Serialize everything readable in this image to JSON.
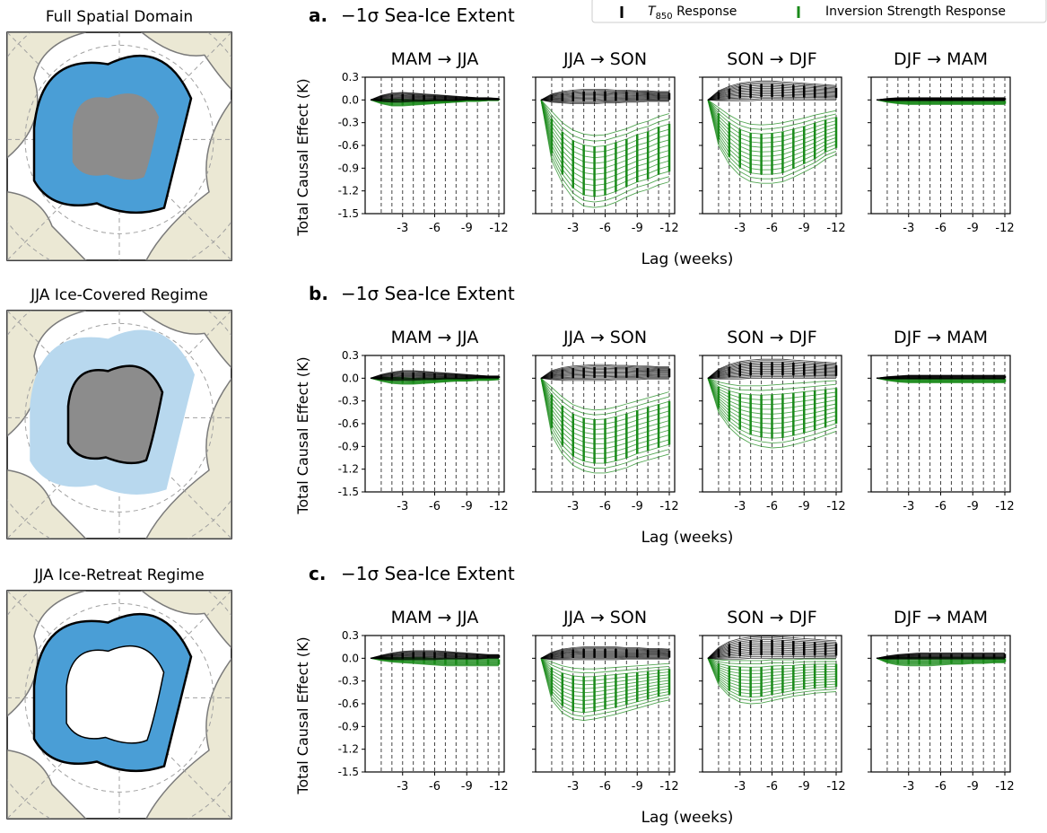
{
  "legend": {
    "items": [
      {
        "label_main": "T",
        "label_sub": "850",
        "label_rest": " Response",
        "color": "#000000"
      },
      {
        "label": "Inversion Strength Response",
        "color": "#1a8a1a"
      }
    ]
  },
  "rows": [
    {
      "map_title": "Full Spatial Domain",
      "map_style": "full",
      "letter": "a.",
      "row_title": "−1σ Sea-Ice Extent"
    },
    {
      "map_title": "JJA Ice-Covered Regime",
      "map_style": "covered",
      "letter": "b.",
      "row_title": "−1σ Sea-Ice Extent"
    },
    {
      "map_title": "JJA Ice-Retreat Regime",
      "map_style": "retreat",
      "letter": "c.",
      "row_title": "−1σ Sea-Ice Extent"
    }
  ],
  "colors": {
    "t850": "#000000",
    "inversion": "#1a8a1a",
    "ocean_blue": "#4a9ed6",
    "light_blue": "#b8d8ee",
    "land": "#ebe8d4",
    "ice_gray": "#8c8c8c",
    "grid": "#a0a0a0"
  },
  "chart_data": {
    "type": "line",
    "panel_titles": [
      "MAM → JJA",
      "JJA → SON",
      "SON → DJF",
      "DJF → MAM"
    ],
    "ylabel": "Total Causal Effect (K)",
    "xlabel": "Lag (weeks)",
    "yticks": [
      "0.3",
      "0.0",
      "-0.3",
      "-0.6",
      "-0.9",
      "-1.2",
      "-1.5"
    ],
    "xticks": [
      "-3",
      "-6",
      "-9",
      "-12"
    ],
    "ylim": [
      -1.5,
      0.3
    ],
    "xlim": [
      0,
      -12
    ],
    "x": [
      0,
      -1,
      -2,
      -3,
      -4,
      -5,
      -6,
      -7,
      -8,
      -9,
      -10,
      -11,
      -12
    ],
    "rows": [
      {
        "panels": [
          {
            "green_min": [
              0,
              -0.05,
              -0.08,
              -0.08,
              -0.07,
              -0.06,
              -0.05,
              -0.04,
              -0.03,
              -0.02,
              -0.02,
              -0.01,
              -0.01
            ],
            "green_max": [
              0,
              0.01,
              0.01,
              0.01,
              0.0,
              0.0,
              0.0,
              0.0,
              0.0,
              0.0,
              0.0,
              0.0,
              0.0
            ],
            "black_min": [
              0,
              -0.02,
              -0.03,
              -0.03,
              -0.02,
              -0.02,
              -0.01,
              -0.01,
              -0.01,
              0,
              0,
              0,
              0
            ],
            "black_max": [
              0,
              0.06,
              0.09,
              0.1,
              0.09,
              0.08,
              0.07,
              0.06,
              0.05,
              0.04,
              0.03,
              0.03,
              0.02
            ]
          },
          {
            "green_min": [
              0,
              -0.8,
              -1.1,
              -1.3,
              -1.4,
              -1.42,
              -1.4,
              -1.35,
              -1.28,
              -1.22,
              -1.18,
              -1.12,
              -1.08
            ],
            "green_max": [
              0,
              -0.15,
              -0.3,
              -0.4,
              -0.45,
              -0.47,
              -0.46,
              -0.42,
              -0.38,
              -0.32,
              -0.28,
              -0.22,
              -0.18
            ],
            "black_min": [
              0,
              -0.03,
              -0.04,
              -0.05,
              -0.05,
              -0.05,
              -0.04,
              -0.04,
              -0.03,
              -0.03,
              -0.02,
              -0.02,
              -0.02
            ],
            "black_max": [
              0,
              0.08,
              0.11,
              0.13,
              0.14,
              0.14,
              0.14,
              0.13,
              0.13,
              0.12,
              0.12,
              0.11,
              0.11
            ]
          },
          {
            "green_min": [
              0,
              -0.6,
              -0.85,
              -1.0,
              -1.08,
              -1.1,
              -1.1,
              -1.08,
              -1.02,
              -0.95,
              -0.88,
              -0.78,
              -0.72
            ],
            "green_max": [
              0,
              -0.1,
              -0.2,
              -0.28,
              -0.32,
              -0.33,
              -0.32,
              -0.3,
              -0.27,
              -0.24,
              -0.2,
              -0.17,
              -0.14
            ],
            "black_min": [
              0,
              -0.01,
              -0.01,
              -0.01,
              -0.01,
              0,
              0,
              0,
              0,
              0,
              0,
              0,
              0
            ],
            "black_max": [
              0,
              0.12,
              0.18,
              0.22,
              0.24,
              0.25,
              0.25,
              0.24,
              0.23,
              0.22,
              0.21,
              0.2,
              0.19
            ]
          },
          {
            "green_min": [
              0,
              -0.03,
              -0.05,
              -0.06,
              -0.06,
              -0.06,
              -0.06,
              -0.06,
              -0.06,
              -0.06,
              -0.06,
              -0.06,
              -0.06
            ],
            "green_max": [
              0,
              0.0,
              0.0,
              0.0,
              0.0,
              0.0,
              0.0,
              0.0,
              0.0,
              0.0,
              0.0,
              0.0,
              0.0
            ],
            "black_min": [
              0,
              -0.01,
              -0.01,
              -0.01,
              -0.01,
              -0.01,
              -0.01,
              -0.01,
              -0.01,
              -0.01,
              -0.01,
              -0.01,
              -0.01
            ],
            "black_max": [
              0,
              0.02,
              0.03,
              0.03,
              0.03,
              0.03,
              0.03,
              0.03,
              0.03,
              0.03,
              0.03,
              0.03,
              0.03
            ]
          }
        ]
      },
      {
        "panels": [
          {
            "green_min": [
              0,
              -0.04,
              -0.07,
              -0.08,
              -0.08,
              -0.07,
              -0.06,
              -0.05,
              -0.04,
              -0.04,
              -0.03,
              -0.03,
              -0.02
            ],
            "green_max": [
              0,
              0.01,
              0.01,
              0.01,
              0.0,
              0.0,
              0.0,
              0.0,
              0.0,
              0.0,
              0.0,
              0.0,
              0.0
            ],
            "black_min": [
              0,
              -0.02,
              -0.03,
              -0.03,
              -0.03,
              -0.02,
              -0.02,
              -0.01,
              -0.01,
              -0.01,
              0,
              0,
              0
            ],
            "black_max": [
              0,
              0.05,
              0.08,
              0.1,
              0.1,
              0.09,
              0.08,
              0.07,
              0.06,
              0.05,
              0.04,
              0.03,
              0.03
            ]
          },
          {
            "green_min": [
              0,
              -0.75,
              -1.0,
              -1.15,
              -1.22,
              -1.25,
              -1.25,
              -1.22,
              -1.18,
              -1.12,
              -1.08,
              -1.04,
              -1.0
            ],
            "green_max": [
              0,
              -0.12,
              -0.25,
              -0.35,
              -0.4,
              -0.42,
              -0.41,
              -0.38,
              -0.34,
              -0.3,
              -0.26,
              -0.22,
              -0.18
            ],
            "black_min": [
              0,
              -0.02,
              -0.03,
              -0.03,
              -0.03,
              -0.03,
              -0.03,
              -0.02,
              -0.02,
              -0.02,
              -0.01,
              -0.01,
              -0.01
            ],
            "black_max": [
              0,
              0.1,
              0.14,
              0.16,
              0.17,
              0.18,
              0.18,
              0.17,
              0.17,
              0.16,
              0.16,
              0.15,
              0.15
            ]
          },
          {
            "green_min": [
              0,
              -0.45,
              -0.65,
              -0.78,
              -0.86,
              -0.9,
              -0.92,
              -0.91,
              -0.88,
              -0.84,
              -0.8,
              -0.75,
              -0.7
            ],
            "green_max": [
              0,
              -0.05,
              -0.08,
              -0.1,
              -0.1,
              -0.1,
              -0.09,
              -0.08,
              -0.07,
              -0.06,
              -0.05,
              -0.04,
              -0.03
            ],
            "black_min": [
              0,
              -0.01,
              -0.01,
              -0.01,
              0,
              0,
              0,
              0,
              0,
              0,
              0,
              0,
              0
            ],
            "black_max": [
              0,
              0.12,
              0.18,
              0.22,
              0.24,
              0.25,
              0.25,
              0.25,
              0.24,
              0.23,
              0.22,
              0.21,
              0.2
            ]
          },
          {
            "green_min": [
              0,
              -0.03,
              -0.05,
              -0.06,
              -0.06,
              -0.06,
              -0.06,
              -0.06,
              -0.06,
              -0.06,
              -0.06,
              -0.06,
              -0.06
            ],
            "green_max": [
              0,
              0.0,
              0.0,
              0.0,
              0.0,
              0.0,
              0.0,
              0.0,
              0.0,
              0.0,
              0.0,
              0.0,
              0.0
            ],
            "black_min": [
              0,
              -0.01,
              -0.01,
              -0.01,
              -0.01,
              -0.01,
              -0.01,
              -0.01,
              -0.01,
              -0.01,
              -0.01,
              -0.01,
              -0.01
            ],
            "black_max": [
              0,
              0.02,
              0.03,
              0.04,
              0.04,
              0.04,
              0.04,
              0.04,
              0.04,
              0.04,
              0.04,
              0.04,
              0.04
            ]
          }
        ]
      },
      {
        "panels": [
          {
            "green_min": [
              0,
              -0.03,
              -0.05,
              -0.06,
              -0.07,
              -0.08,
              -0.09,
              -0.1,
              -0.1,
              -0.1,
              -0.1,
              -0.1,
              -0.1
            ],
            "green_max": [
              0,
              0.01,
              0.01,
              0.01,
              0.01,
              0.01,
              0.0,
              0.0,
              0.0,
              0.0,
              0.0,
              0.0,
              0.0
            ],
            "black_min": [
              0,
              -0.01,
              -0.02,
              -0.02,
              -0.02,
              -0.02,
              -0.02,
              -0.01,
              -0.01,
              -0.01,
              -0.01,
              0,
              0
            ],
            "black_max": [
              0,
              0.04,
              0.07,
              0.09,
              0.1,
              0.1,
              0.1,
              0.09,
              0.08,
              0.07,
              0.06,
              0.05,
              0.05
            ]
          },
          {
            "green_min": [
              0,
              -0.55,
              -0.72,
              -0.8,
              -0.82,
              -0.8,
              -0.77,
              -0.74,
              -0.7,
              -0.66,
              -0.62,
              -0.58,
              -0.55
            ],
            "green_max": [
              0,
              -0.05,
              -0.1,
              -0.13,
              -0.14,
              -0.14,
              -0.13,
              -0.12,
              -0.11,
              -0.1,
              -0.09,
              -0.08,
              -0.07
            ],
            "black_min": [
              0,
              -0.02,
              -0.02,
              -0.02,
              -0.02,
              -0.02,
              -0.02,
              -0.02,
              -0.01,
              -0.01,
              -0.01,
              -0.01,
              -0.01
            ],
            "black_max": [
              0,
              0.08,
              0.12,
              0.14,
              0.15,
              0.15,
              0.15,
              0.15,
              0.14,
              0.14,
              0.13,
              0.13,
              0.12
            ]
          },
          {
            "green_min": [
              0,
              -0.35,
              -0.5,
              -0.58,
              -0.6,
              -0.59,
              -0.56,
              -0.53,
              -0.5,
              -0.48,
              -0.46,
              -0.45,
              -0.44
            ],
            "green_max": [
              0,
              -0.02,
              -0.03,
              -0.03,
              -0.03,
              -0.03,
              -0.02,
              -0.02,
              -0.02,
              -0.01,
              -0.01,
              -0.01,
              -0.01
            ],
            "black_min": [
              0,
              -0.01,
              -0.01,
              -0.01,
              0,
              0,
              0,
              0,
              0,
              0,
              0,
              0,
              0
            ],
            "black_max": [
              0,
              0.14,
              0.22,
              0.26,
              0.28,
              0.29,
              0.29,
              0.28,
              0.27,
              0.26,
              0.25,
              0.24,
              0.23
            ]
          },
          {
            "green_min": [
              0,
              -0.06,
              -0.09,
              -0.1,
              -0.1,
              -0.1,
              -0.09,
              -0.08,
              -0.08,
              -0.07,
              -0.07,
              -0.06,
              -0.06
            ],
            "green_max": [
              0,
              0.01,
              0.01,
              0.01,
              0.01,
              0.01,
              0.01,
              0.01,
              0.01,
              0.01,
              0.01,
              0.01,
              0.01
            ],
            "black_min": [
              0,
              -0.01,
              -0.01,
              -0.01,
              -0.01,
              -0.01,
              -0.01,
              -0.01,
              -0.01,
              -0.01,
              -0.01,
              -0.01,
              -0.01
            ],
            "black_max": [
              0,
              0.03,
              0.05,
              0.06,
              0.07,
              0.07,
              0.07,
              0.07,
              0.07,
              0.07,
              0.07,
              0.07,
              0.07
            ]
          }
        ]
      }
    ]
  }
}
